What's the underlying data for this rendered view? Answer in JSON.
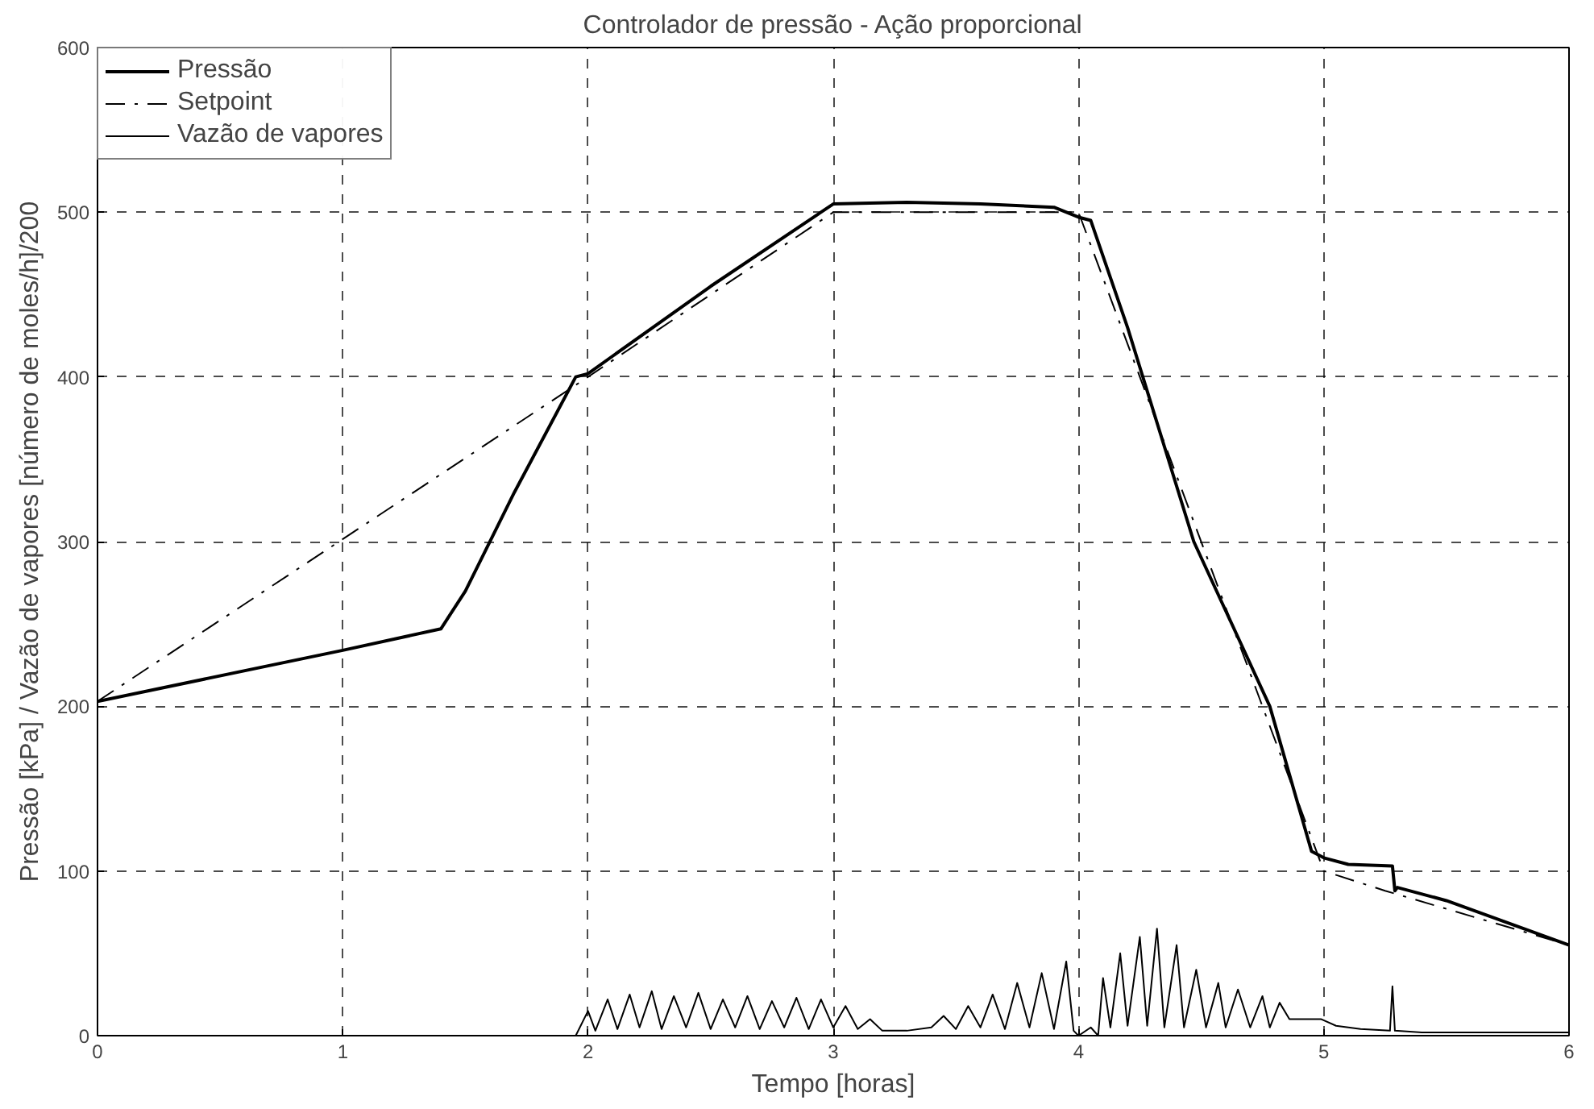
{
  "chart_data": {
    "type": "line",
    "title": "Controlador de pressão - Ação proporcional",
    "xlabel": "Tempo [horas]",
    "ylabel": "Pressão [kPa] / Vazão de vapores [número de moles/h]/200",
    "xlim": [
      0,
      6
    ],
    "ylim": [
      0,
      600
    ],
    "xticks": [
      0,
      1,
      2,
      3,
      4,
      5,
      6
    ],
    "yticks": [
      0,
      100,
      200,
      300,
      400,
      500,
      600
    ],
    "grid": true,
    "legend": "top left",
    "series": [
      {
        "name": "Pressão",
        "color": "#000000",
        "line_style": "solid",
        "x": [
          0,
          1,
          1.4,
          1.5,
          1.7,
          1.95,
          2,
          2.5,
          3,
          3.3,
          3.6,
          3.9,
          4,
          4.05,
          4.2,
          4.47,
          4.78,
          4.95,
          5,
          5.1,
          5.28,
          5.29,
          5.3,
          5.5,
          6
        ],
        "values": [
          203,
          234,
          247,
          270,
          330,
          400,
          402,
          455,
          505,
          506,
          505,
          503,
          497,
          495,
          430,
          300,
          200,
          112,
          108,
          104,
          103,
          88,
          90,
          82,
          55
        ]
      },
      {
        "name": "Setpoint",
        "color": "#000000",
        "line_style": "dashed",
        "x": [
          0,
          2,
          3,
          4,
          5,
          5.25,
          6
        ],
        "values": [
          203,
          400,
          500,
          500,
          100,
          88,
          55
        ]
      },
      {
        "name": "Vazão de vapores",
        "color": "#000000",
        "line_style": "solid",
        "x": [
          0,
          1.95,
          2.0,
          2.03,
          2.08,
          2.12,
          2.17,
          2.21,
          2.26,
          2.3,
          2.35,
          2.4,
          2.45,
          2.5,
          2.55,
          2.6,
          2.65,
          2.7,
          2.75,
          2.8,
          2.85,
          2.9,
          2.95,
          3.0,
          3.05,
          3.1,
          3.15,
          3.2,
          3.3,
          3.4,
          3.45,
          3.5,
          3.55,
          3.6,
          3.65,
          3.7,
          3.75,
          3.8,
          3.85,
          3.9,
          3.95,
          3.98,
          4.0,
          4.05,
          4.08,
          4.1,
          4.13,
          4.17,
          4.2,
          4.25,
          4.28,
          4.32,
          4.35,
          4.4,
          4.43,
          4.48,
          4.52,
          4.57,
          4.6,
          4.65,
          4.7,
          4.75,
          4.78,
          4.82,
          4.86,
          4.99,
          5.05,
          5.15,
          5.27,
          5.28,
          5.29,
          5.4,
          6
        ],
        "values": [
          0,
          0,
          15,
          3,
          22,
          4,
          25,
          5,
          27,
          4,
          24,
          5,
          26,
          4,
          22,
          5,
          24,
          4,
          21,
          5,
          23,
          4,
          22,
          5,
          18,
          4,
          10,
          3,
          3,
          5,
          12,
          4,
          18,
          5,
          25,
          4,
          32,
          5,
          38,
          4,
          45,
          3,
          0,
          5,
          0,
          35,
          5,
          50,
          6,
          60,
          6,
          65,
          5,
          55,
          5,
          40,
          5,
          32,
          5,
          28,
          5,
          24,
          5,
          20,
          10,
          10,
          6,
          4,
          3,
          30,
          3,
          2,
          2
        ]
      }
    ]
  }
}
